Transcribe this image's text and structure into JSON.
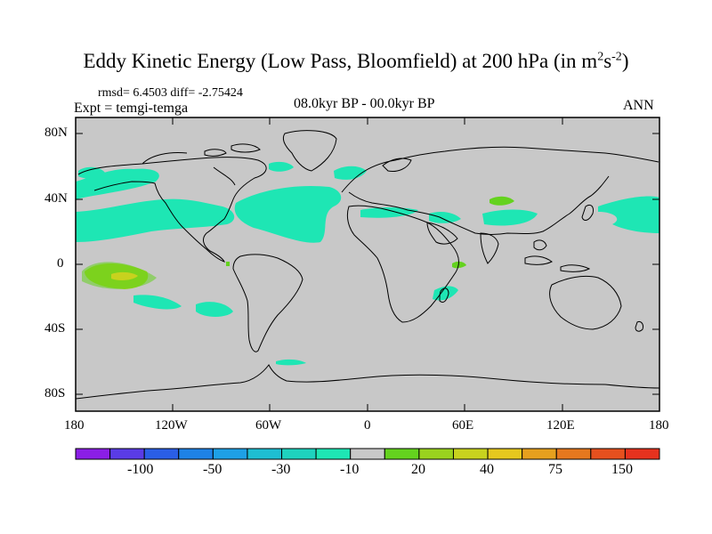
{
  "title": {
    "main": "Eddy Kinetic Energy (Low Pass, Bloomfield) at 200 hPa (in m",
    "sup1": "2",
    "mid": "s",
    "sup2": "-2",
    "end": ")"
  },
  "stats": "rmsd= 6.4503 diff= -2.75424",
  "expt": "Expt = temgi-temga",
  "period": "08.0kyr BP - 00.0kyr BP",
  "season": "ANN",
  "lat_labels": [
    "80N",
    "40N",
    "0",
    "40S",
    "80S"
  ],
  "lon_labels": [
    "180",
    "120W",
    "60W",
    "0",
    "60E",
    "120E",
    "180"
  ],
  "colorbar": {
    "colors": [
      "#8b1ee6",
      "#5a3ce6",
      "#2a5ee6",
      "#1e82e6",
      "#1ea0e6",
      "#1ebed2",
      "#1ed2be",
      "#1ee6b4",
      "#c8c8c8",
      "#64d21e",
      "#9ad21e",
      "#c8d21e",
      "#e6c81e",
      "#e6a01e",
      "#e6781e",
      "#e6501e",
      "#e6321e"
    ],
    "labels": [
      "-100",
      "-50",
      "-30",
      "-10",
      "20",
      "40",
      "75",
      "150"
    ]
  },
  "colors": {
    "land_ocean_fill": "#c8c8c8",
    "negative_contour": "#1ee6b4",
    "positive_contour": "#64d21e",
    "positive_strong": "#9ad21e"
  }
}
